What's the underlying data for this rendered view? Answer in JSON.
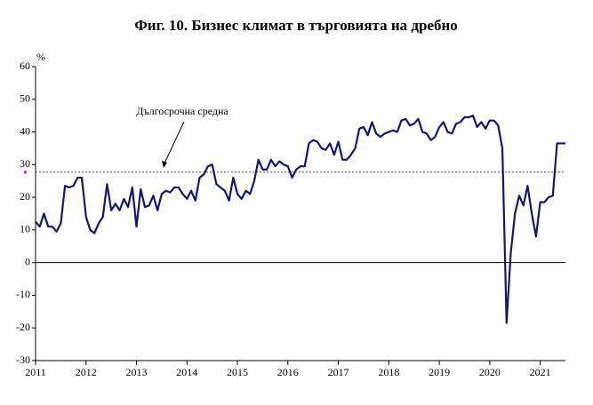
{
  "chart_data": {
    "type": "line",
    "title": "Фиг. 10. Бизнес климат в търговията на дребно",
    "y_unit": "%",
    "annotation": "Дългосрочна средна",
    "long_term_average": 27.7,
    "categories": [
      "2011",
      null,
      null,
      null,
      null,
      null,
      null,
      null,
      null,
      null,
      null,
      null,
      "2012",
      null,
      null,
      null,
      null,
      null,
      null,
      null,
      null,
      null,
      null,
      null,
      "2013",
      null,
      null,
      null,
      null,
      null,
      null,
      null,
      null,
      null,
      null,
      null,
      "2014",
      null,
      null,
      null,
      null,
      null,
      null,
      null,
      null,
      null,
      null,
      null,
      "2015",
      null,
      null,
      null,
      null,
      null,
      null,
      null,
      null,
      null,
      null,
      null,
      "2016",
      null,
      null,
      null,
      null,
      null,
      null,
      null,
      null,
      null,
      null,
      null,
      "2017",
      null,
      null,
      null,
      null,
      null,
      null,
      null,
      null,
      null,
      null,
      null,
      "2018",
      null,
      null,
      null,
      null,
      null,
      null,
      null,
      null,
      null,
      null,
      null,
      "2019",
      null,
      null,
      null,
      null,
      null,
      null,
      null,
      null,
      null,
      null,
      null,
      "2020",
      null,
      null,
      null,
      null,
      null,
      null,
      null,
      null,
      null,
      null,
      null,
      "2021",
      null,
      null,
      null,
      null,
      null,
      null
    ],
    "series": [
      {
        "color": "#16166e",
        "values": [
          12.5,
          11,
          15,
          11,
          11,
          9.5,
          12,
          23.5,
          23,
          23.5,
          26,
          26,
          14,
          10,
          9,
          12,
          14,
          24,
          16,
          18,
          16,
          19.5,
          17,
          23,
          11,
          22.5,
          17,
          17.5,
          20.5,
          16,
          21,
          22,
          21.5,
          23,
          23,
          21,
          19.5,
          22,
          19,
          26,
          27,
          29.5,
          30,
          24,
          23,
          22,
          19,
          26,
          21,
          19.5,
          22,
          21,
          25,
          31.5,
          28.5,
          28.5,
          31.5,
          29.5,
          31,
          30,
          29.5,
          26,
          28.5,
          29.5,
          29.5,
          36.5,
          37.5,
          37,
          35,
          34.5,
          36.5,
          33,
          37,
          31.5,
          31.5,
          33,
          35,
          41,
          41.5,
          39,
          43,
          39.5,
          38.5,
          39.5,
          40,
          40.5,
          40,
          43.5,
          44,
          42,
          42.5,
          44,
          40,
          39.5,
          37.5,
          38.5,
          41.5,
          43,
          40,
          39.5,
          42.5,
          43,
          44.5,
          44.5,
          45,
          41.5,
          43,
          41,
          43.5,
          43.5,
          42,
          35,
          -18.5,
          3,
          15,
          20.5,
          17.5,
          23.5,
          15,
          8,
          18.5,
          18.5,
          20,
          20.5,
          36.5,
          36.5,
          36.5
        ]
      }
    ],
    "ylim": [
      -30,
      60
    ],
    "yticks": [
      -30,
      -20,
      -10,
      0,
      10,
      20,
      30,
      40,
      50,
      60
    ]
  }
}
